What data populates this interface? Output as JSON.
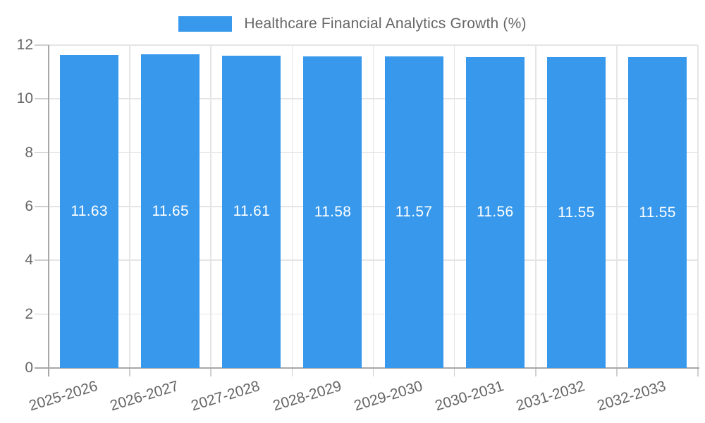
{
  "chart_data": {
    "type": "bar",
    "title": "",
    "legend": {
      "label": "Healthcare Financial Analytics Growth (%)",
      "position": "top"
    },
    "categories": [
      "2025-2026",
      "2026-2027",
      "2027-2028",
      "2028-2029",
      "2029-2030",
      "2030-2031",
      "2031-2032",
      "2032-2033"
    ],
    "series": [
      {
        "name": "Healthcare Financial Analytics Growth (%)",
        "values": [
          11.63,
          11.65,
          11.61,
          11.58,
          11.57,
          11.56,
          11.55,
          11.55
        ]
      }
    ],
    "value_labels": [
      "11.63",
      "11.65",
      "11.61",
      "11.58",
      "11.57",
      "11.56",
      "11.55",
      "11.55"
    ],
    "xlabel": "",
    "ylabel": "",
    "ylim": [
      0,
      12
    ],
    "yticks": [
      0,
      2,
      4,
      6,
      8,
      10,
      12
    ],
    "grid": true,
    "colors": {
      "bar": "#3899EC",
      "grid": "#E5E5E5",
      "axis": "#A8A8A8",
      "tick": "#CFCFCF",
      "tick_text": "#666666",
      "legend_text": "#666666",
      "value_text": "#FFFFFF",
      "background": "#FFFFFF"
    }
  }
}
